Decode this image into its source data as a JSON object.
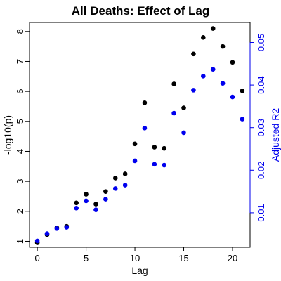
{
  "chart_data": {
    "type": "scatter",
    "title": "All Deaths: Effect of Lag",
    "xlabel": "Lag",
    "ylabel": "-log10(p)",
    "y2label": "Adjusted R2",
    "xlim": [
      -0.8,
      21.8
    ],
    "ylim": [
      0.8,
      8.3
    ],
    "y2lim": [
      0.0019,
      0.0547
    ],
    "xticks": [
      0,
      5,
      10,
      15,
      20
    ],
    "yticks": [
      1,
      2,
      3,
      4,
      5,
      6,
      7,
      8
    ],
    "y2ticks": [
      0.01,
      0.02,
      0.03,
      0.04,
      0.05
    ],
    "grid": false,
    "colors": {
      "left": "#000000",
      "right": "#0000ee"
    },
    "x": [
      0,
      1,
      2,
      3,
      4,
      5,
      6,
      7,
      8,
      9,
      10,
      11,
      12,
      13,
      14,
      15,
      16,
      17,
      18,
      19,
      20,
      21
    ],
    "series": [
      {
        "axis": "left",
        "color": "#000000",
        "values": [
          0.95,
          1.22,
          1.45,
          1.5,
          2.28,
          2.57,
          2.24,
          2.66,
          3.11,
          3.25,
          4.25,
          5.62,
          4.14,
          4.1,
          6.25,
          5.45,
          7.25,
          7.8,
          8.1,
          7.5,
          6.97,
          6.02
        ]
      },
      {
        "axis": "right",
        "color": "#0000ee",
        "values": [
          0.0034,
          0.0051,
          0.0063,
          0.0066,
          0.0111,
          0.0128,
          0.0107,
          0.0132,
          0.0157,
          0.0165,
          0.0222,
          0.0299,
          0.0214,
          0.0212,
          0.0334,
          0.0288,
          0.0388,
          0.0421,
          0.0437,
          0.0404,
          0.0372,
          0.032
        ]
      }
    ]
  }
}
